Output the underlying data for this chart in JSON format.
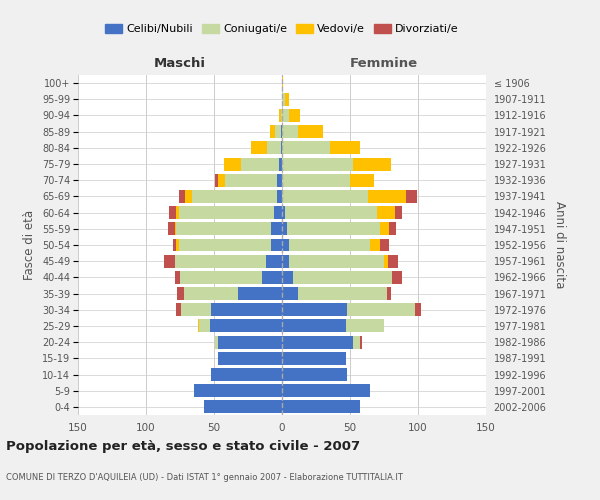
{
  "age_groups": [
    "0-4",
    "5-9",
    "10-14",
    "15-19",
    "20-24",
    "25-29",
    "30-34",
    "35-39",
    "40-44",
    "45-49",
    "50-54",
    "55-59",
    "60-64",
    "65-69",
    "70-74",
    "75-79",
    "80-84",
    "85-89",
    "90-94",
    "95-99",
    "100+"
  ],
  "birth_years": [
    "2002-2006",
    "1997-2001",
    "1992-1996",
    "1987-1991",
    "1982-1986",
    "1977-1981",
    "1972-1976",
    "1967-1971",
    "1962-1966",
    "1957-1961",
    "1952-1956",
    "1947-1951",
    "1942-1946",
    "1937-1941",
    "1932-1936",
    "1927-1931",
    "1922-1926",
    "1917-1921",
    "1912-1916",
    "1907-1911",
    "≤ 1906"
  ],
  "colors": {
    "celibi": "#4472c4",
    "coniugati": "#c5d9a0",
    "vedovi": "#ffc000",
    "divorziati": "#c0504d"
  },
  "maschi": {
    "celibi": [
      57,
      65,
      52,
      47,
      47,
      53,
      52,
      32,
      15,
      12,
      8,
      8,
      6,
      4,
      4,
      2,
      1,
      1,
      0,
      0,
      0
    ],
    "coniugati": [
      0,
      0,
      0,
      0,
      2,
      8,
      22,
      40,
      60,
      67,
      68,
      70,
      70,
      62,
      38,
      28,
      10,
      4,
      1,
      0,
      0
    ],
    "vedovi": [
      0,
      0,
      0,
      0,
      0,
      1,
      0,
      0,
      0,
      0,
      2,
      1,
      2,
      5,
      5,
      13,
      12,
      4,
      1,
      0,
      0
    ],
    "divorziati": [
      0,
      0,
      0,
      0,
      0,
      0,
      4,
      5,
      4,
      8,
      2,
      5,
      5,
      5,
      2,
      0,
      0,
      0,
      0,
      0,
      0
    ]
  },
  "femmine": {
    "celibi": [
      57,
      65,
      48,
      47,
      52,
      47,
      48,
      12,
      8,
      5,
      5,
      4,
      2,
      0,
      0,
      0,
      0,
      0,
      0,
      0,
      0
    ],
    "coniugati": [
      0,
      0,
      0,
      0,
      5,
      28,
      50,
      65,
      73,
      70,
      60,
      68,
      68,
      63,
      50,
      52,
      35,
      12,
      5,
      2,
      0
    ],
    "vedovi": [
      0,
      0,
      0,
      0,
      0,
      0,
      0,
      0,
      0,
      3,
      7,
      7,
      13,
      28,
      18,
      28,
      22,
      18,
      8,
      3,
      1
    ],
    "divorziati": [
      0,
      0,
      0,
      0,
      2,
      0,
      4,
      3,
      7,
      7,
      7,
      5,
      5,
      8,
      0,
      0,
      0,
      0,
      0,
      0,
      0
    ]
  },
  "title": "Popolazione per età, sesso e stato civile - 2007",
  "subtitle": "COMUNE DI TERZO D'AQUILEIA (UD) - Dati ISTAT 1° gennaio 2007 - Elaborazione TUTTITALIA.IT",
  "xlabel_left": "Maschi",
  "xlabel_right": "Femmine",
  "ylabel": "Fasce di età",
  "ylabel_right": "Anni di nascita",
  "legend_labels": [
    "Celibi/Nubili",
    "Coniugati/e",
    "Vedovi/e",
    "Divorziati/e"
  ],
  "xlim": 150,
  "bg_color": "#f0f0f0",
  "plot_bg_color": "#ffffff",
  "grid_color": "#cccccc"
}
